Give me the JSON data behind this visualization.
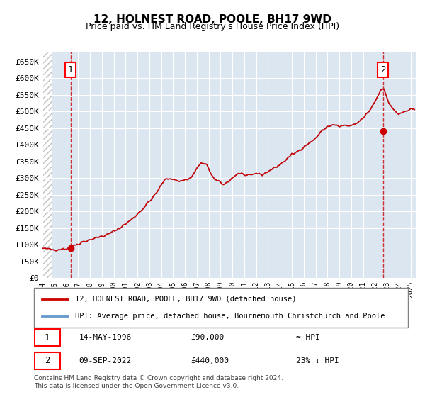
{
  "title": "12, HOLNEST ROAD, POOLE, BH17 9WD",
  "subtitle": "Price paid vs. HM Land Registry's House Price Index (HPI)",
  "ylabel_ticks": [
    "£0",
    "£50K",
    "£100K",
    "£150K",
    "£200K",
    "£250K",
    "£300K",
    "£350K",
    "£400K",
    "£450K",
    "£500K",
    "£550K",
    "£600K",
    "£650K"
  ],
  "ytick_values": [
    0,
    50000,
    100000,
    150000,
    200000,
    250000,
    300000,
    350000,
    400000,
    450000,
    500000,
    550000,
    600000,
    650000
  ],
  "ylim": [
    0,
    680000
  ],
  "xlim_start": 1994.0,
  "xlim_end": 2025.5,
  "hpi_color": "#6699cc",
  "price_color": "#cc0000",
  "dashed_color": "#cc0000",
  "bg_color": "#dce6f1",
  "plot_bg": "#dce6f1",
  "legend_line1": "12, HOLNEST ROAD, POOLE, BH17 9WD (detached house)",
  "legend_line2": "HPI: Average price, detached house, Bournemouth Christchurch and Poole",
  "sale1_date": "14-MAY-1996",
  "sale1_price": "£90,000",
  "sale1_hpi": "≈ HPI",
  "sale1_year": 1996.37,
  "sale1_value": 90000,
  "sale2_date": "09-SEP-2022",
  "sale2_price": "£440,000",
  "sale2_hpi": "23% ↓ HPI",
  "sale2_year": 2022.69,
  "sale2_value": 440000,
  "footer": "Contains HM Land Registry data © Crown copyright and database right 2024.\nThis data is licensed under the Open Government Licence v3.0.",
  "hatch_color": "#b0b0b0"
}
